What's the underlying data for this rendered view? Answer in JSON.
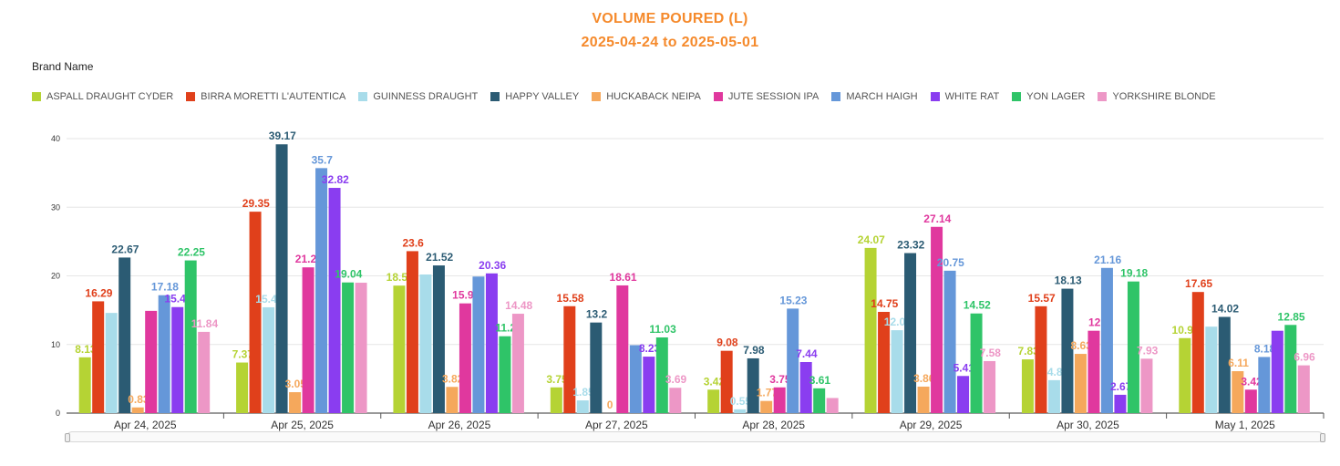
{
  "title": "VOLUME POURED (L)",
  "subtitle": "2025-04-24 to 2025-05-01",
  "legend_title": "Brand Name",
  "chart_data": {
    "type": "bar",
    "title": "VOLUME POURED (L)",
    "subtitle": "2025-04-24 to 2025-05-01",
    "xlabel": "",
    "ylabel": "",
    "ylim": [
      0,
      40
    ],
    "yticks": [
      0,
      10,
      20,
      30,
      40
    ],
    "legend_placement": "top-left",
    "categories": [
      "Apr 24, 2025",
      "Apr 25, 2025",
      "Apr 26, 2025",
      "Apr 27, 2025",
      "Apr 28, 2025",
      "Apr 29, 2025",
      "Apr 30, 2025",
      "May 1, 2025"
    ],
    "series": [
      {
        "name": "ASPALL DRAUGHT CYDER",
        "color": "#b5d334",
        "values": [
          8.13,
          7.37,
          18.58,
          3.75,
          3.42,
          24.07,
          7.83,
          10.93
        ],
        "labels": [
          "8.13",
          "7.37",
          "18.58",
          "3.75",
          "3.42",
          "24.07",
          "7.83",
          "10.93"
        ]
      },
      {
        "name": "BIRRA MORETTI L'AUTENTICA",
        "color": "#e0401b",
        "values": [
          16.29,
          29.35,
          23.6,
          15.58,
          9.08,
          14.75,
          15.57,
          17.65
        ],
        "labels": [
          "16.29",
          "29.35",
          "23.6",
          "15.58",
          "9.08",
          "14.75",
          "15.57",
          "17.65"
        ]
      },
      {
        "name": "GUINNESS DRAUGHT",
        "color": "#a8dcea",
        "values": [
          14.6,
          15.42,
          20.2,
          1.85,
          0.55,
          12.08,
          4.8,
          12.6
        ],
        "labels": [
          "",
          "15.42",
          "",
          "1.85",
          "0.55",
          "12.08",
          "4.8",
          ""
        ]
      },
      {
        "name": "HAPPY VALLEY",
        "color": "#2b5b73",
        "values": [
          22.67,
          39.17,
          21.52,
          13.2,
          7.98,
          23.32,
          18.13,
          14.02
        ],
        "labels": [
          "22.67",
          "39.17",
          "21.52",
          "13.2",
          "7.98",
          "23.32",
          "18.13",
          "14.02"
        ]
      },
      {
        "name": "HUCKABACK NEIPA",
        "color": "#f5a85c",
        "values": [
          0.83,
          3.05,
          3.82,
          0,
          1.77,
          3.86,
          8.63,
          6.11
        ],
        "labels": [
          "0.83",
          "3.05",
          "3.82",
          "0",
          "1.77",
          "3.86",
          "8.63",
          "6.11"
        ]
      },
      {
        "name": "JUTE SESSION IPA",
        "color": "#e0389e",
        "values": [
          14.9,
          21.24,
          15.99,
          18.61,
          3.75,
          27.14,
          12,
          3.42
        ],
        "labels": [
          "",
          "21.24",
          "15.99",
          "18.61",
          "3.75",
          "27.14",
          "12",
          "3.42"
        ]
      },
      {
        "name": "MARCH HAIGH",
        "color": "#6597d9",
        "values": [
          17.18,
          35.7,
          19.9,
          9.9,
          15.23,
          20.75,
          21.16,
          8.18
        ],
        "labels": [
          "17.18",
          "35.7",
          "",
          "",
          "15.23",
          "20.75",
          "21.16",
          "8.18"
        ]
      },
      {
        "name": "WHITE RAT",
        "color": "#8a3df0",
        "values": [
          15.45,
          32.82,
          20.36,
          8.23,
          7.44,
          5.41,
          2.67,
          12.0
        ],
        "labels": [
          "15.45",
          "32.82",
          "20.36",
          "8.23",
          "7.44",
          "5.41",
          "2.67",
          ""
        ]
      },
      {
        "name": "YON LAGER",
        "color": "#2fc468",
        "values": [
          22.25,
          19.04,
          11.2,
          11.03,
          3.61,
          14.52,
          19.18,
          12.85
        ],
        "labels": [
          "22.25",
          "19.04",
          "11.2",
          "11.03",
          "3.61",
          "14.52",
          "19.18",
          "12.85"
        ]
      },
      {
        "name": "YORKSHIRE BLONDE",
        "color": "#ed97c6",
        "values": [
          11.84,
          19.0,
          14.48,
          3.69,
          2.2,
          7.58,
          7.93,
          6.96
        ],
        "labels": [
          "11.84",
          "",
          "14.48",
          "3.69",
          "",
          "7.58",
          "7.93",
          "6.96"
        ]
      }
    ]
  }
}
